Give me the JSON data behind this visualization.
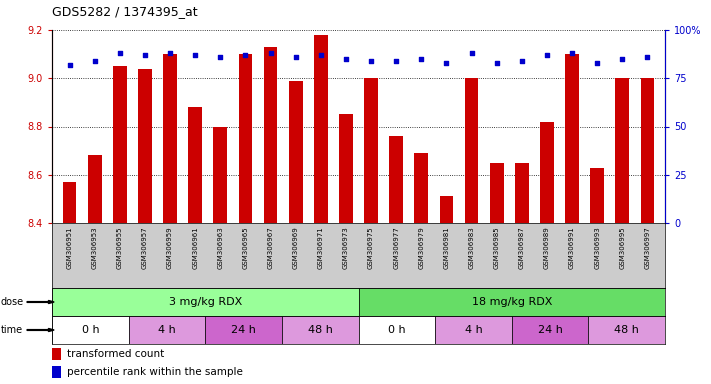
{
  "title": "GDS5282 / 1374395_at",
  "samples": [
    "GSM306951",
    "GSM306953",
    "GSM306955",
    "GSM306957",
    "GSM306959",
    "GSM306961",
    "GSM306963",
    "GSM306965",
    "GSM306967",
    "GSM306969",
    "GSM306971",
    "GSM306973",
    "GSM306975",
    "GSM306977",
    "GSM306979",
    "GSM306981",
    "GSM306983",
    "GSM306985",
    "GSM306987",
    "GSM306989",
    "GSM306991",
    "GSM306993",
    "GSM306995",
    "GSM306997"
  ],
  "transformed_count": [
    8.57,
    8.68,
    9.05,
    9.04,
    9.1,
    8.88,
    8.8,
    9.1,
    9.13,
    8.99,
    9.18,
    8.85,
    9.0,
    8.76,
    8.69,
    8.51,
    9.0,
    8.65,
    8.65,
    8.82,
    9.1,
    8.63,
    9.0,
    9.0
  ],
  "percentile_rank": [
    82,
    84,
    88,
    87,
    88,
    87,
    86,
    87,
    88,
    86,
    87,
    85,
    84,
    84,
    85,
    83,
    88,
    83,
    84,
    87,
    88,
    83,
    85,
    86
  ],
  "ylim_left": [
    8.4,
    9.2
  ],
  "ylim_right": [
    0,
    100
  ],
  "yticks_left": [
    8.4,
    8.6,
    8.8,
    9.0,
    9.2
  ],
  "yticks_right": [
    0,
    25,
    50,
    75,
    100
  ],
  "bar_color": "#cc0000",
  "dot_color": "#0000cc",
  "bar_bottom": 8.4,
  "dose_groups": [
    {
      "label": "3 mg/kg RDX",
      "start": 0,
      "end": 12,
      "color": "#99ff99"
    },
    {
      "label": "18 mg/kg RDX",
      "start": 12,
      "end": 24,
      "color": "#66dd66"
    }
  ],
  "time_groups": [
    {
      "label": "0 h",
      "start": 0,
      "end": 3,
      "color": "#ffffff"
    },
    {
      "label": "4 h",
      "start": 3,
      "end": 6,
      "color": "#dd99dd"
    },
    {
      "label": "24 h",
      "start": 6,
      "end": 9,
      "color": "#cc66cc"
    },
    {
      "label": "48 h",
      "start": 9,
      "end": 12,
      "color": "#dd99dd"
    },
    {
      "label": "0 h",
      "start": 12,
      "end": 15,
      "color": "#ffffff"
    },
    {
      "label": "4 h",
      "start": 15,
      "end": 18,
      "color": "#dd99dd"
    },
    {
      "label": "24 h",
      "start": 18,
      "end": 21,
      "color": "#cc66cc"
    },
    {
      "label": "48 h",
      "start": 21,
      "end": 24,
      "color": "#dd99dd"
    }
  ],
  "legend_bar_label": "transformed count",
  "legend_dot_label": "percentile rank within the sample",
  "axis_color_left": "#cc0000",
  "axis_color_right": "#0000cc",
  "xtick_bg_color": "#cccccc",
  "fig_width": 7.11,
  "fig_height": 3.84,
  "dpi": 100
}
